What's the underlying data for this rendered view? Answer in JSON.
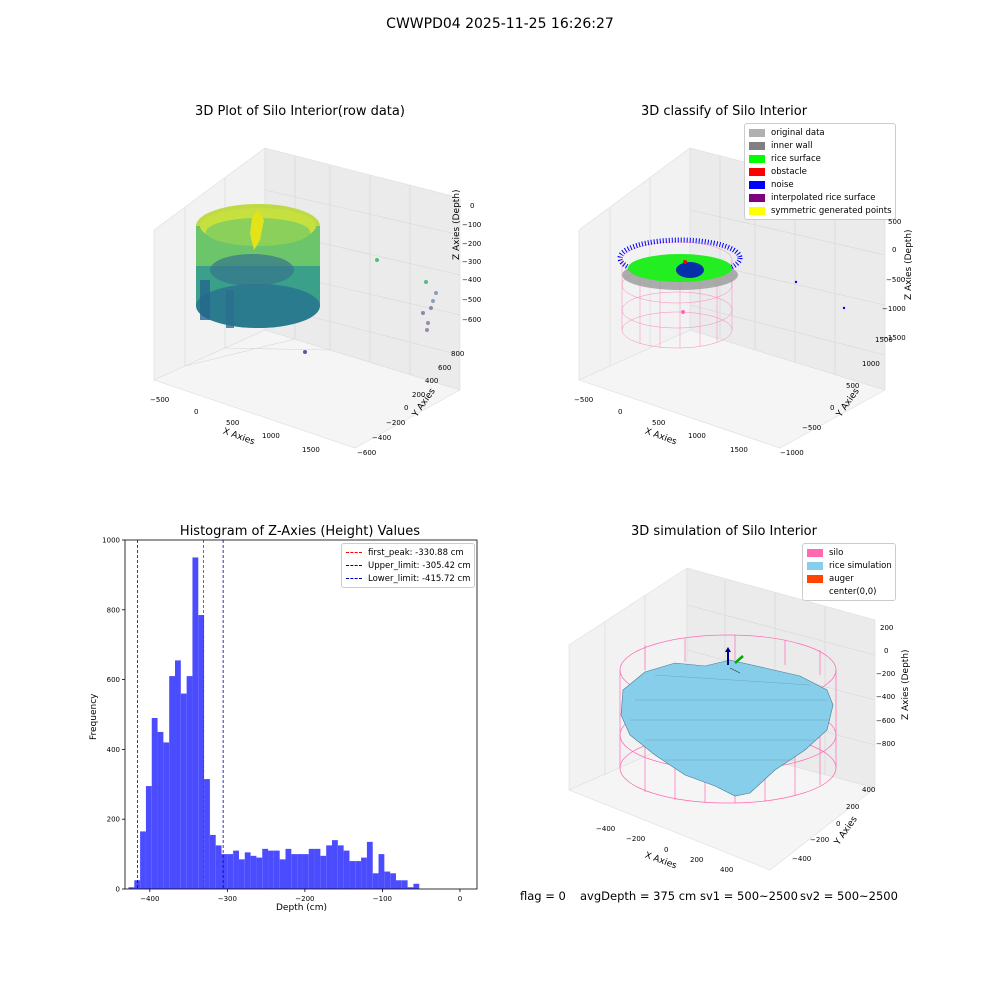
{
  "figure_title": "CWWPD04 2025-11-25 16:26:27",
  "status": {
    "flag": "flag = 0",
    "avg_depth": "avgDepth = 375 cm",
    "sv1": "sv1 = 500~2500",
    "sv2": "sv2 = 500~2500"
  },
  "colors": {
    "histogram_bar": "#4c4cff",
    "first_peak_line": "#ff0000",
    "limit_line": "#0000aa",
    "silo": "#ff69b4",
    "rice_simulation": "#87ceeb",
    "auger": "#ff4500"
  },
  "chart_data": [
    {
      "type": "scatter",
      "subtype": "3d",
      "title": "3D Plot of Silo Interior(row data)",
      "xlabel": "X Axies",
      "ylabel": "Y Axies",
      "zlabel": "Z Axies (Depth)",
      "x_ticks": [
        "−500",
        "0",
        "500",
        "1000",
        "1500"
      ],
      "y_ticks": [
        "−600",
        "−400",
        "−200",
        "0",
        "200",
        "400",
        "600",
        "800"
      ],
      "z_ticks": [
        "−600",
        "−500",
        "−400",
        "−300",
        "−200",
        "−100",
        "0"
      ],
      "colormap": "viridis"
    },
    {
      "type": "scatter",
      "subtype": "3d",
      "title": "3D classify of Silo Interior",
      "xlabel": "X Axies",
      "ylabel": "Y Axies",
      "zlabel": "Z Axies (Depth)",
      "x_ticks": [
        "−500",
        "0",
        "500",
        "1000",
        "1500"
      ],
      "y_ticks": [
        "−1000",
        "−500",
        "0",
        "500",
        "1000",
        "1500"
      ],
      "z_ticks": [
        "−1500",
        "−1000",
        "−500",
        "0",
        "500"
      ],
      "legend_position": "top-right",
      "legend": [
        {
          "label": "original data",
          "color": "#b0b0b0"
        },
        {
          "label": "inner wall",
          "color": "#808080"
        },
        {
          "label": "rice surface",
          "color": "#00ff00"
        },
        {
          "label": "obstacle",
          "color": "#ff0000"
        },
        {
          "label": "noise",
          "color": "#0000ff"
        },
        {
          "label": "interpolated rice surface",
          "color": "#800080"
        },
        {
          "label": "symmetric generated points",
          "color": "#ffff00"
        }
      ]
    },
    {
      "type": "bar",
      "subtype": "histogram",
      "title": "Histogram of Z-Axies (Height) Values",
      "xlabel": "Depth (cm)",
      "ylabel": "Frequency",
      "xlim": [
        -432,
        22
      ],
      "ylim": [
        0,
        1000
      ],
      "x_ticks": [
        -400,
        -300,
        -200,
        -100,
        0
      ],
      "x_tick_labels": [
        "−400",
        "−300",
        "−200",
        "−100",
        "0"
      ],
      "y_ticks": [
        0,
        200,
        400,
        600,
        800,
        1000
      ],
      "bin_width": 7.5,
      "bin_start": -427.5,
      "values": [
        5,
        25,
        165,
        295,
        490,
        450,
        420,
        610,
        655,
        560,
        610,
        950,
        785,
        315,
        155,
        125,
        100,
        100,
        110,
        85,
        105,
        95,
        90,
        115,
        110,
        110,
        85,
        115,
        100,
        100,
        100,
        115,
        115,
        95,
        125,
        140,
        125,
        110,
        80,
        80,
        90,
        135,
        45,
        100,
        50,
        45,
        25,
        25,
        5,
        15
      ],
      "lines": [
        {
          "label": "first_peak: -330.88 cm",
          "x": -330.88,
          "color": "#ff0000"
        },
        {
          "label": "Upper_limit: -305.42 cm",
          "x": -305.42,
          "color": "#0000aa"
        },
        {
          "label": "Lower_limit: -415.72 cm",
          "x": -415.72,
          "color": "#0000aa"
        }
      ],
      "legend_position": "top-right"
    },
    {
      "type": "area",
      "subtype": "3d surface",
      "title": "3D simulation of Silo Interior",
      "xlabel": "X Axies",
      "ylabel": "Y Axies",
      "zlabel": "Z Axies (Depth)",
      "x_ticks": [
        "−400",
        "−200",
        "0",
        "200",
        "400"
      ],
      "y_ticks": [
        "−400",
        "−200",
        "0",
        "200",
        "400"
      ],
      "z_ticks": [
        "−800",
        "−600",
        "−400",
        "−200",
        "0",
        "200"
      ],
      "legend_position": "top-right",
      "legend": [
        {
          "label": "silo",
          "color": "#ff69b4"
        },
        {
          "label": "rice simulation",
          "color": "#87ceeb"
        },
        {
          "label": "auger",
          "color": "#ff4500"
        },
        {
          "label": "center(0,0)",
          "color": ""
        }
      ]
    }
  ]
}
